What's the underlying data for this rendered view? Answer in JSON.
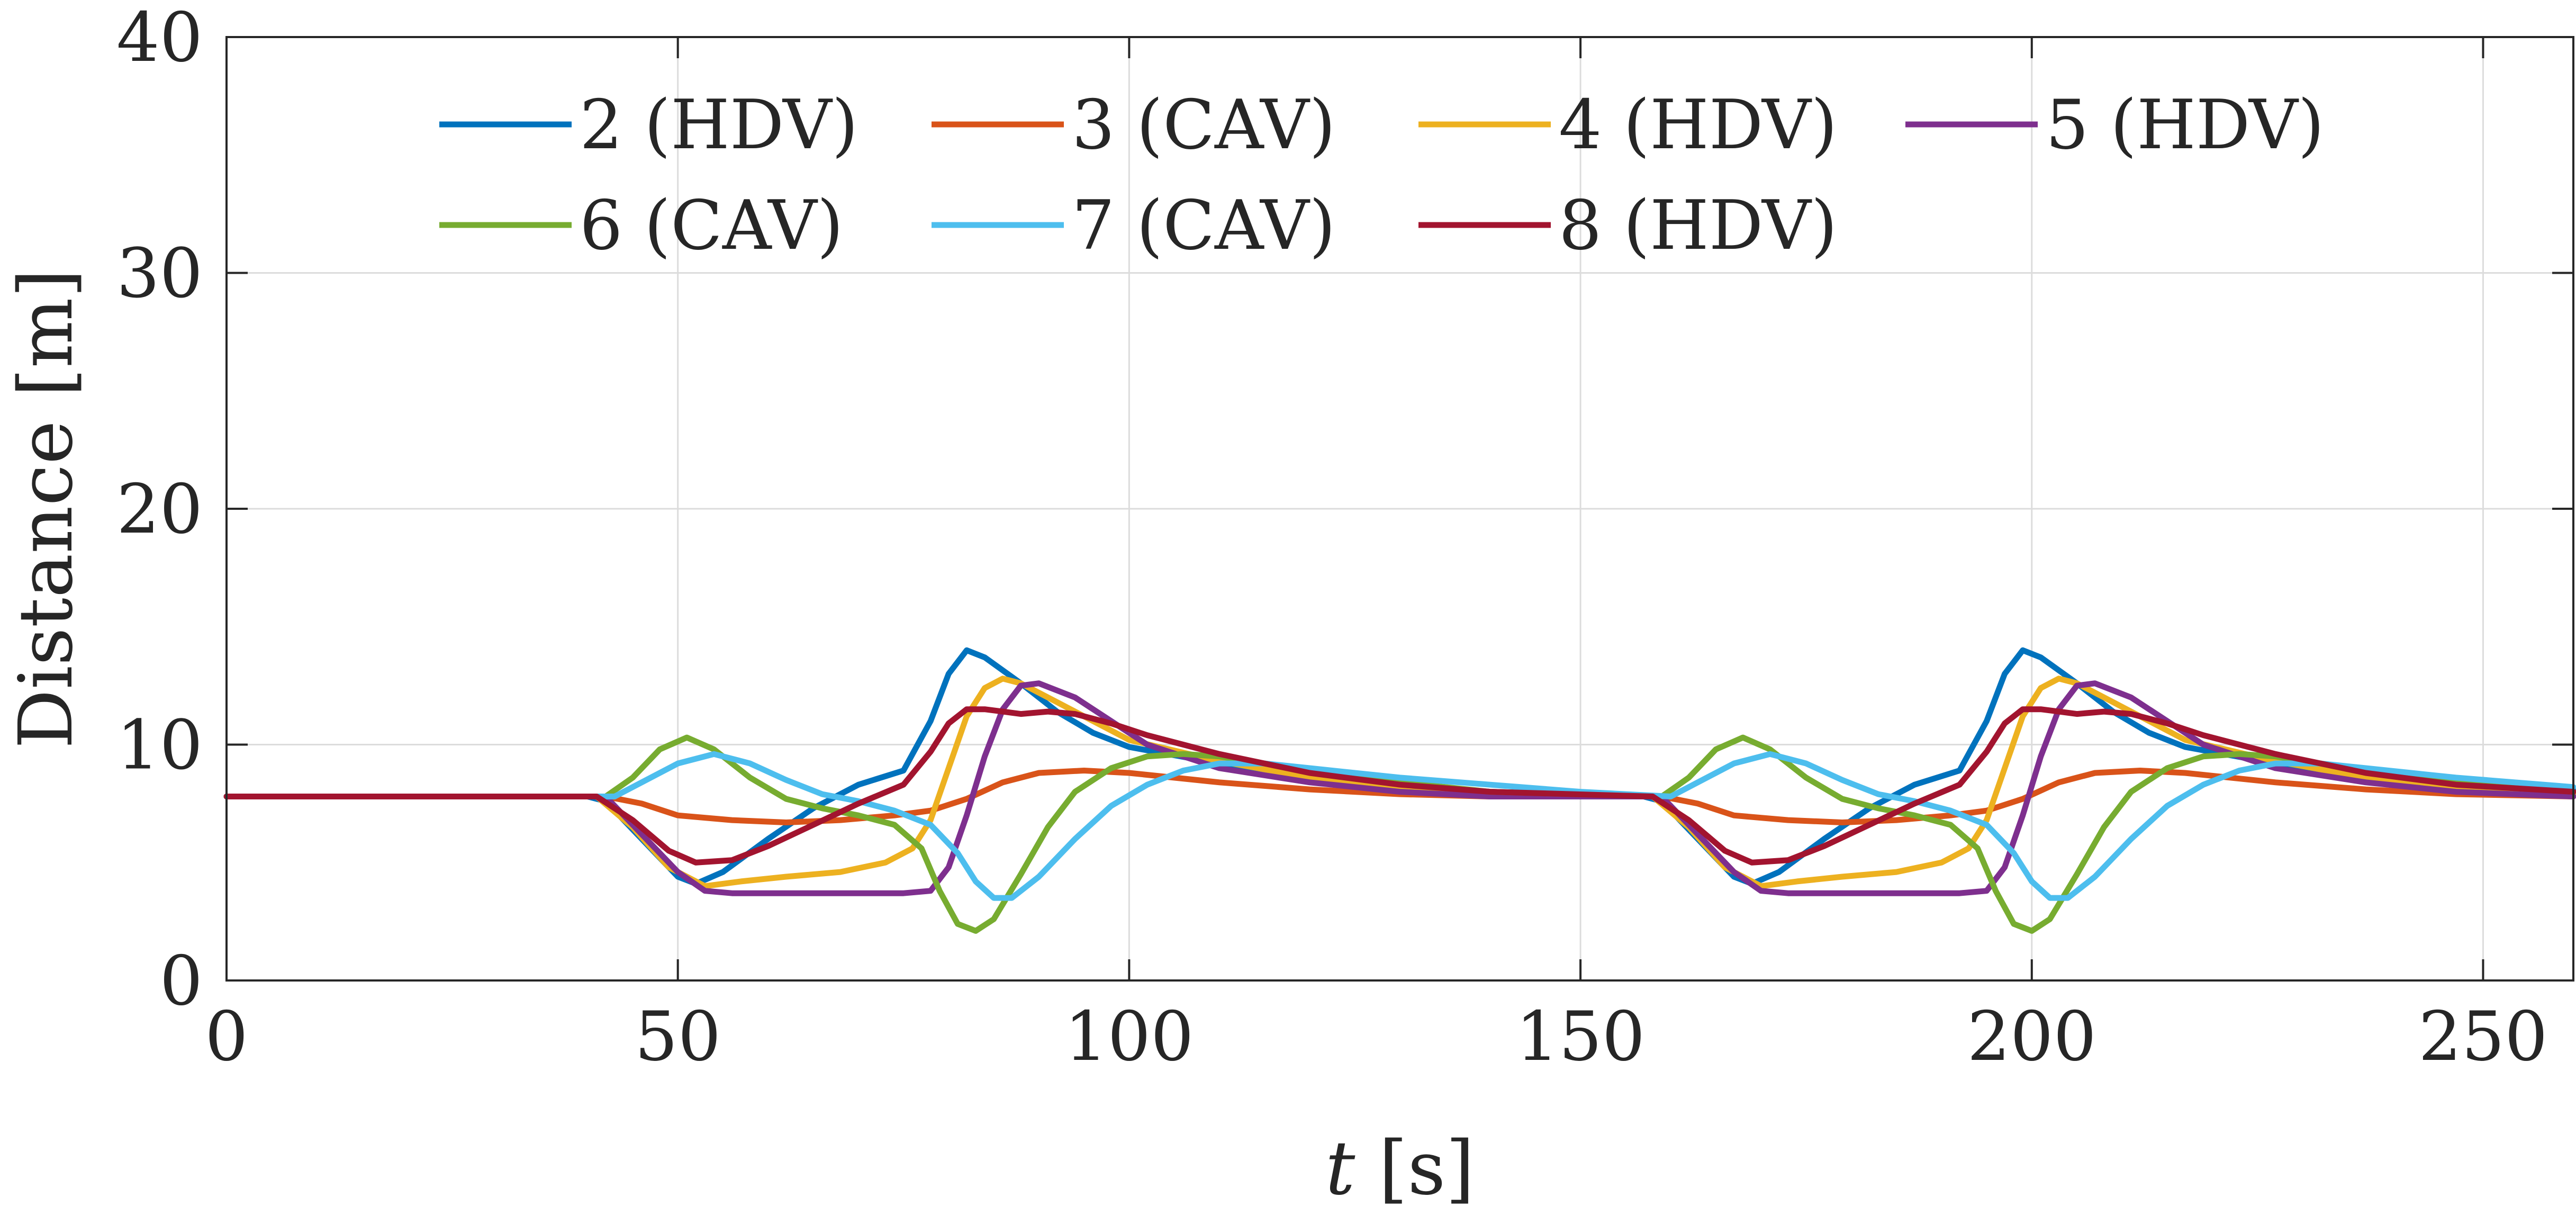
{
  "chart_data": {
    "type": "line",
    "title": "",
    "xlabel_var": "t",
    "xlabel_unit": " [s]",
    "ylabel": "Distance [m]",
    "xlim": [
      0,
      260
    ],
    "ylim": [
      0,
      40
    ],
    "xticks": [
      0,
      50,
      100,
      150,
      200,
      250
    ],
    "yticks": [
      0,
      10,
      20,
      30,
      40
    ],
    "grid": true,
    "legend_position": "top",
    "series": [
      {
        "name": "2 (HDV)",
        "color": "#0072BD",
        "points": [
          [
            0,
            7.8
          ],
          [
            40,
            7.8
          ],
          [
            42,
            7.6
          ],
          [
            46,
            6.0
          ],
          [
            50,
            4.4
          ],
          [
            52,
            4.1
          ],
          [
            55,
            4.6
          ],
          [
            60,
            6.0
          ],
          [
            65,
            7.3
          ],
          [
            70,
            8.3
          ],
          [
            75,
            8.9
          ],
          [
            78,
            11.0
          ],
          [
            80,
            13.0
          ],
          [
            82,
            14.0
          ],
          [
            84,
            13.7
          ],
          [
            88,
            12.6
          ],
          [
            92,
            11.4
          ],
          [
            96,
            10.5
          ],
          [
            100,
            9.9
          ],
          [
            110,
            9.2
          ],
          [
            120,
            8.7
          ],
          [
            130,
            8.3
          ],
          [
            140,
            8.0
          ],
          [
            150,
            7.9
          ],
          [
            157,
            7.8
          ],
          [
            159,
            7.6
          ],
          [
            163,
            6.0
          ],
          [
            167,
            4.4
          ],
          [
            169,
            4.1
          ],
          [
            172,
            4.6
          ],
          [
            177,
            6.0
          ],
          [
            182,
            7.3
          ],
          [
            187,
            8.3
          ],
          [
            192,
            8.9
          ],
          [
            195,
            11.0
          ],
          [
            197,
            13.0
          ],
          [
            199,
            14.0
          ],
          [
            201,
            13.7
          ],
          [
            205,
            12.6
          ],
          [
            209,
            11.4
          ],
          [
            213,
            10.5
          ],
          [
            217,
            9.9
          ],
          [
            227,
            9.2
          ],
          [
            237,
            8.7
          ],
          [
            247,
            8.4
          ],
          [
            260,
            8.1
          ]
        ]
      },
      {
        "name": "3 (CAV)",
        "color": "#D95319",
        "points": [
          [
            0,
            7.8
          ],
          [
            42,
            7.8
          ],
          [
            46,
            7.5
          ],
          [
            50,
            7.0
          ],
          [
            56,
            6.8
          ],
          [
            62,
            6.7
          ],
          [
            68,
            6.8
          ],
          [
            74,
            7.0
          ],
          [
            78,
            7.2
          ],
          [
            82,
            7.7
          ],
          [
            86,
            8.4
          ],
          [
            90,
            8.8
          ],
          [
            95,
            8.9
          ],
          [
            100,
            8.8
          ],
          [
            110,
            8.4
          ],
          [
            120,
            8.1
          ],
          [
            130,
            7.9
          ],
          [
            140,
            7.8
          ],
          [
            159,
            7.8
          ],
          [
            163,
            7.5
          ],
          [
            167,
            7.0
          ],
          [
            173,
            6.8
          ],
          [
            179,
            6.7
          ],
          [
            185,
            6.8
          ],
          [
            191,
            7.0
          ],
          [
            195,
            7.2
          ],
          [
            199,
            7.7
          ],
          [
            203,
            8.4
          ],
          [
            207,
            8.8
          ],
          [
            212,
            8.9
          ],
          [
            217,
            8.8
          ],
          [
            227,
            8.4
          ],
          [
            237,
            8.1
          ],
          [
            247,
            7.9
          ],
          [
            260,
            7.8
          ]
        ]
      },
      {
        "name": "4 (HDV)",
        "color": "#EDB120",
        "points": [
          [
            0,
            7.8
          ],
          [
            41,
            7.8
          ],
          [
            45,
            6.5
          ],
          [
            49,
            4.8
          ],
          [
            53,
            4.0
          ],
          [
            57,
            4.2
          ],
          [
            62,
            4.4
          ],
          [
            68,
            4.6
          ],
          [
            73,
            5.0
          ],
          [
            76,
            5.6
          ],
          [
            78,
            6.8
          ],
          [
            80,
            9.0
          ],
          [
            82,
            11.2
          ],
          [
            84,
            12.4
          ],
          [
            86,
            12.8
          ],
          [
            88,
            12.6
          ],
          [
            92,
            11.8
          ],
          [
            96,
            11.0
          ],
          [
            100,
            10.2
          ],
          [
            110,
            9.3
          ],
          [
            120,
            8.6
          ],
          [
            130,
            8.2
          ],
          [
            140,
            7.9
          ],
          [
            158,
            7.8
          ],
          [
            162,
            6.5
          ],
          [
            166,
            4.8
          ],
          [
            170,
            4.0
          ],
          [
            174,
            4.2
          ],
          [
            179,
            4.4
          ],
          [
            185,
            4.6
          ],
          [
            190,
            5.0
          ],
          [
            193,
            5.6
          ],
          [
            195,
            6.8
          ],
          [
            197,
            9.0
          ],
          [
            199,
            11.2
          ],
          [
            201,
            12.4
          ],
          [
            203,
            12.8
          ],
          [
            205,
            12.6
          ],
          [
            209,
            11.8
          ],
          [
            213,
            11.0
          ],
          [
            217,
            10.2
          ],
          [
            227,
            9.3
          ],
          [
            237,
            8.6
          ],
          [
            247,
            8.2
          ],
          [
            260,
            7.9
          ]
        ]
      },
      {
        "name": "5 (HDV)",
        "color": "#7E2F8E",
        "points": [
          [
            0,
            7.8
          ],
          [
            42,
            7.8
          ],
          [
            46,
            6.2
          ],
          [
            50,
            4.6
          ],
          [
            53,
            3.8
          ],
          [
            56,
            3.7
          ],
          [
            65,
            3.7
          ],
          [
            75,
            3.7
          ],
          [
            78,
            3.8
          ],
          [
            80,
            4.8
          ],
          [
            82,
            7.0
          ],
          [
            84,
            9.5
          ],
          [
            86,
            11.5
          ],
          [
            88,
            12.5
          ],
          [
            90,
            12.6
          ],
          [
            94,
            12.0
          ],
          [
            98,
            11.0
          ],
          [
            102,
            10.0
          ],
          [
            110,
            9.0
          ],
          [
            120,
            8.4
          ],
          [
            130,
            8.0
          ],
          [
            140,
            7.8
          ],
          [
            159,
            7.8
          ],
          [
            163,
            6.2
          ],
          [
            167,
            4.6
          ],
          [
            170,
            3.8
          ],
          [
            173,
            3.7
          ],
          [
            182,
            3.7
          ],
          [
            192,
            3.7
          ],
          [
            195,
            3.8
          ],
          [
            197,
            4.8
          ],
          [
            199,
            7.0
          ],
          [
            201,
            9.5
          ],
          [
            203,
            11.5
          ],
          [
            205,
            12.5
          ],
          [
            207,
            12.6
          ],
          [
            211,
            12.0
          ],
          [
            215,
            11.0
          ],
          [
            219,
            10.0
          ],
          [
            227,
            9.0
          ],
          [
            237,
            8.4
          ],
          [
            247,
            8.0
          ],
          [
            260,
            7.8
          ]
        ]
      },
      {
        "name": "6 (CAV)",
        "color": "#77AC30",
        "points": [
          [
            0,
            7.8
          ],
          [
            42,
            7.8
          ],
          [
            45,
            8.6
          ],
          [
            48,
            9.8
          ],
          [
            51,
            10.3
          ],
          [
            54,
            9.8
          ],
          [
            58,
            8.6
          ],
          [
            62,
            7.7
          ],
          [
            66,
            7.3
          ],
          [
            70,
            7.0
          ],
          [
            74,
            6.6
          ],
          [
            77,
            5.6
          ],
          [
            79,
            3.8
          ],
          [
            81,
            2.4
          ],
          [
            83,
            2.1
          ],
          [
            85,
            2.6
          ],
          [
            88,
            4.5
          ],
          [
            91,
            6.5
          ],
          [
            94,
            8.0
          ],
          [
            98,
            9.0
          ],
          [
            102,
            9.5
          ],
          [
            106,
            9.6
          ],
          [
            110,
            9.5
          ],
          [
            120,
            8.9
          ],
          [
            130,
            8.4
          ],
          [
            140,
            8.0
          ],
          [
            159,
            7.8
          ],
          [
            162,
            8.6
          ],
          [
            165,
            9.8
          ],
          [
            168,
            10.3
          ],
          [
            171,
            9.8
          ],
          [
            175,
            8.6
          ],
          [
            179,
            7.7
          ],
          [
            183,
            7.3
          ],
          [
            187,
            7.0
          ],
          [
            191,
            6.6
          ],
          [
            194,
            5.6
          ],
          [
            196,
            3.8
          ],
          [
            198,
            2.4
          ],
          [
            200,
            2.1
          ],
          [
            202,
            2.6
          ],
          [
            205,
            4.5
          ],
          [
            208,
            6.5
          ],
          [
            211,
            8.0
          ],
          [
            215,
            9.0
          ],
          [
            219,
            9.5
          ],
          [
            223,
            9.6
          ],
          [
            227,
            9.5
          ],
          [
            237,
            8.9
          ],
          [
            247,
            8.4
          ],
          [
            260,
            8.0
          ]
        ]
      },
      {
        "name": "7 (CAV)",
        "color": "#4DBEEE",
        "points": [
          [
            0,
            7.8
          ],
          [
            43,
            7.8
          ],
          [
            46,
            8.4
          ],
          [
            50,
            9.2
          ],
          [
            54,
            9.6
          ],
          [
            58,
            9.2
          ],
          [
            62,
            8.5
          ],
          [
            66,
            7.9
          ],
          [
            70,
            7.6
          ],
          [
            74,
            7.2
          ],
          [
            78,
            6.6
          ],
          [
            81,
            5.4
          ],
          [
            83,
            4.2
          ],
          [
            85,
            3.5
          ],
          [
            87,
            3.5
          ],
          [
            90,
            4.4
          ],
          [
            94,
            6.0
          ],
          [
            98,
            7.4
          ],
          [
            102,
            8.3
          ],
          [
            106,
            8.9
          ],
          [
            110,
            9.2
          ],
          [
            115,
            9.2
          ],
          [
            120,
            9.0
          ],
          [
            130,
            8.6
          ],
          [
            140,
            8.3
          ],
          [
            150,
            8.0
          ],
          [
            160,
            7.8
          ],
          [
            163,
            8.4
          ],
          [
            167,
            9.2
          ],
          [
            171,
            9.6
          ],
          [
            175,
            9.2
          ],
          [
            179,
            8.5
          ],
          [
            183,
            7.9
          ],
          [
            187,
            7.6
          ],
          [
            191,
            7.2
          ],
          [
            195,
            6.6
          ],
          [
            198,
            5.4
          ],
          [
            200,
            4.2
          ],
          [
            202,
            3.5
          ],
          [
            204,
            3.5
          ],
          [
            207,
            4.4
          ],
          [
            211,
            6.0
          ],
          [
            215,
            7.4
          ],
          [
            219,
            8.3
          ],
          [
            223,
            8.9
          ],
          [
            227,
            9.2
          ],
          [
            232,
            9.2
          ],
          [
            237,
            9.0
          ],
          [
            247,
            8.6
          ],
          [
            260,
            8.2
          ]
        ]
      },
      {
        "name": "8 (HDV)",
        "color": "#A2142F",
        "points": [
          [
            0,
            7.8
          ],
          [
            41,
            7.8
          ],
          [
            45,
            6.8
          ],
          [
            49,
            5.5
          ],
          [
            52,
            5.0
          ],
          [
            56,
            5.1
          ],
          [
            60,
            5.7
          ],
          [
            65,
            6.6
          ],
          [
            70,
            7.5
          ],
          [
            75,
            8.3
          ],
          [
            78,
            9.7
          ],
          [
            80,
            10.9
          ],
          [
            82,
            11.5
          ],
          [
            84,
            11.5
          ],
          [
            86,
            11.4
          ],
          [
            88,
            11.3
          ],
          [
            91,
            11.4
          ],
          [
            94,
            11.3
          ],
          [
            98,
            10.9
          ],
          [
            102,
            10.4
          ],
          [
            110,
            9.6
          ],
          [
            120,
            8.8
          ],
          [
            130,
            8.3
          ],
          [
            140,
            8.0
          ],
          [
            158,
            7.8
          ],
          [
            162,
            6.8
          ],
          [
            166,
            5.5
          ],
          [
            169,
            5.0
          ],
          [
            173,
            5.1
          ],
          [
            177,
            5.7
          ],
          [
            182,
            6.6
          ],
          [
            187,
            7.5
          ],
          [
            192,
            8.3
          ],
          [
            195,
            9.7
          ],
          [
            197,
            10.9
          ],
          [
            199,
            11.5
          ],
          [
            201,
            11.5
          ],
          [
            203,
            11.4
          ],
          [
            205,
            11.3
          ],
          [
            208,
            11.4
          ],
          [
            211,
            11.3
          ],
          [
            215,
            10.9
          ],
          [
            219,
            10.4
          ],
          [
            227,
            9.6
          ],
          [
            237,
            8.8
          ],
          [
            247,
            8.3
          ],
          [
            260,
            8.0
          ]
        ]
      }
    ]
  }
}
